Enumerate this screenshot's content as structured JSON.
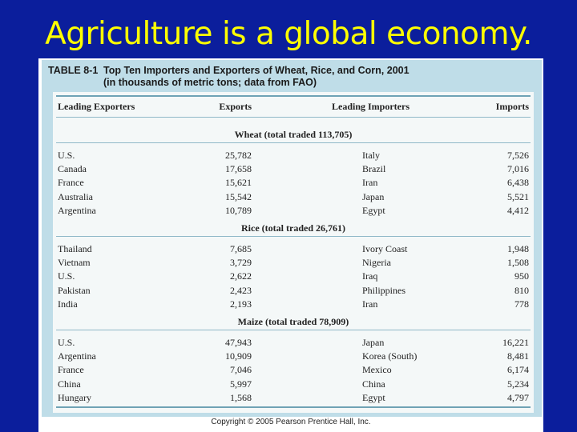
{
  "slide": {
    "title": "Agriculture is a global economy."
  },
  "table": {
    "number": "TABLE 8-1",
    "caption_line1": "Top Ten Importers and Exporters of Wheat, Rice, and Corn, 2001",
    "caption_line2": "(in thousands of metric tons; data from FAO)",
    "columns": [
      "Leading Exporters",
      "Exports",
      "Leading Importers",
      "Imports"
    ],
    "sections": [
      {
        "title": "Wheat (total traded 113,705)",
        "rows": [
          [
            "U.S.",
            "25,782",
            "Italy",
            "7,526"
          ],
          [
            "Canada",
            "17,658",
            "Brazil",
            "7,016"
          ],
          [
            "France",
            "15,621",
            "Iran",
            "6,438"
          ],
          [
            "Australia",
            "15,542",
            "Japan",
            "5,521"
          ],
          [
            "Argentina",
            "10,789",
            "Egypt",
            "4,412"
          ]
        ]
      },
      {
        "title": "Rice (total traded 26,761)",
        "rows": [
          [
            "Thailand",
            "7,685",
            "Ivory Coast",
            "1,948"
          ],
          [
            "Vietnam",
            "3,729",
            "Nigeria",
            "1,508"
          ],
          [
            "U.S.",
            "2,622",
            "Iraq",
            "950"
          ],
          [
            "Pakistan",
            "2,423",
            "Philippines",
            "810"
          ],
          [
            "India",
            "2,193",
            "Iran",
            "778"
          ]
        ]
      },
      {
        "title": "Maize (total traded 78,909)",
        "rows": [
          [
            "U.S.",
            "47,943",
            "Japan",
            "16,221"
          ],
          [
            "Argentina",
            "10,909",
            "Korea (South)",
            "8,481"
          ],
          [
            "France",
            "7,046",
            "Mexico",
            "6,174"
          ],
          [
            "China",
            "5,997",
            "China",
            "5,234"
          ],
          [
            "Hungary",
            "1,568",
            "Egypt",
            "4,797"
          ]
        ]
      }
    ]
  },
  "footer": {
    "copyright": "Copyright © 2005 Pearson Prentice Hall, Inc."
  }
}
